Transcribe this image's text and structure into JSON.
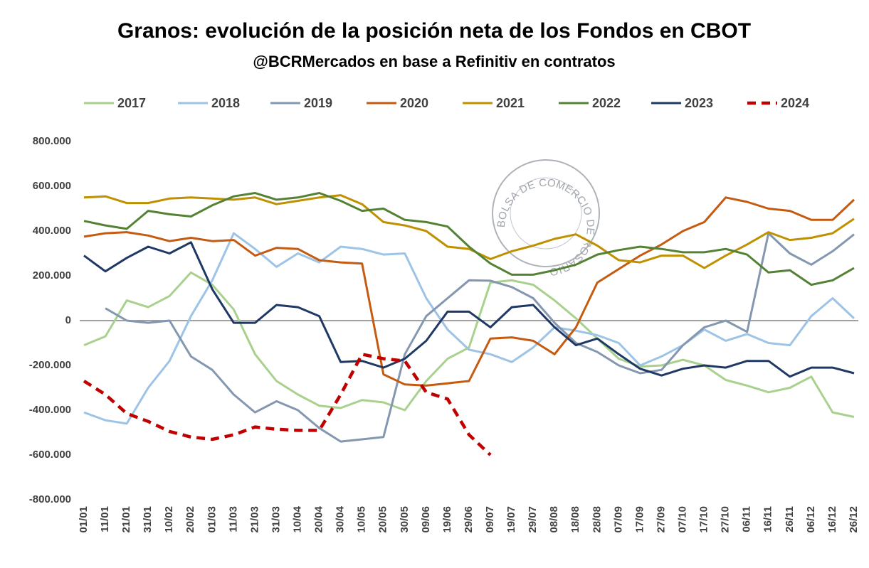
{
  "chart_data": {
    "type": "line",
    "title": "Granos: evolución de la posición neta de los Fondos en CBOT",
    "subtitle": "@BCRMercados en base a Refinitiv en contratos",
    "watermark": "BOLSA DE COMERCIO DE ROSARIO",
    "categories": [
      "01/01",
      "11/01",
      "21/01",
      "31/01",
      "10/02",
      "20/02",
      "01/03",
      "11/03",
      "21/03",
      "31/03",
      "10/04",
      "20/04",
      "30/04",
      "10/05",
      "20/05",
      "30/05",
      "09/06",
      "19/06",
      "29/06",
      "09/07",
      "19/07",
      "29/07",
      "08/08",
      "18/08",
      "28/08",
      "07/09",
      "17/09",
      "27/09",
      "07/10",
      "17/10",
      "27/10",
      "06/11",
      "16/11",
      "26/11",
      "06/12",
      "16/12",
      "26/12"
    ],
    "ylim": [
      -800000,
      800000
    ],
    "yticks": [
      {
        "value": 800000,
        "label": "800.000"
      },
      {
        "value": 600000,
        "label": "600.000"
      },
      {
        "value": 400000,
        "label": "400.000"
      },
      {
        "value": 200000,
        "label": "200.000"
      },
      0,
      {
        "value": -200000,
        "label": "-200.000"
      },
      {
        "value": -400000,
        "label": "-400.000"
      },
      {
        "value": -600000,
        "label": "-600.000"
      },
      {
        "value": -800000,
        "label": "-800.000"
      }
    ],
    "grid": false,
    "legend": "top",
    "series": [
      {
        "name": "2017",
        "color": "#a9d18e",
        "values": [
          -110000,
          -70000,
          90000,
          60000,
          110000,
          215000,
          160000,
          50000,
          -150000,
          -270000,
          -330000,
          -380000,
          -390000,
          -355000,
          -365000,
          -400000,
          -270000,
          -170000,
          -120000,
          170000,
          180000,
          160000,
          90000,
          10000,
          -80000,
          -170000,
          -205000,
          -200000,
          -175000,
          -200000,
          -265000,
          -290000,
          -320000,
          -300000,
          -250000,
          -410000,
          -430000
        ]
      },
      {
        "name": "2018",
        "color": "#9dc3e6",
        "values": [
          -410000,
          -445000,
          -460000,
          -300000,
          -180000,
          20000,
          180000,
          390000,
          320000,
          240000,
          300000,
          260000,
          330000,
          320000,
          295000,
          300000,
          100000,
          -40000,
          -130000,
          -150000,
          -185000,
          -120000,
          -30000,
          -45000,
          -65000,
          -100000,
          -200000,
          -160000,
          -110000,
          -40000,
          -90000,
          -60000,
          -100000,
          -110000,
          20000,
          100000,
          10000
        ]
      },
      {
        "name": "2019",
        "color": "#8497b0",
        "values": [
          null,
          55000,
          0,
          -10000,
          0,
          -160000,
          -220000,
          -330000,
          -410000,
          -360000,
          -400000,
          -480000,
          -540000,
          -530000,
          -520000,
          -150000,
          20000,
          100000,
          180000,
          178000,
          150000,
          100000,
          -10000,
          -100000,
          -140000,
          -200000,
          -235000,
          -220000,
          -110000,
          -30000,
          0,
          -50000,
          390000,
          300000,
          250000,
          310000,
          385000
        ]
      },
      {
        "name": "2020",
        "color": "#c55a11",
        "values": [
          375000,
          390000,
          395000,
          380000,
          355000,
          370000,
          355000,
          360000,
          290000,
          325000,
          320000,
          270000,
          260000,
          255000,
          -240000,
          -285000,
          -290000,
          -280000,
          -270000,
          -80000,
          -75000,
          -90000,
          -150000,
          -30000,
          170000,
          230000,
          290000,
          340000,
          400000,
          440000,
          550000,
          530000,
          500000,
          490000,
          450000,
          450000,
          540000
        ]
      },
      {
        "name": "2021",
        "color": "#bf9000",
        "values": [
          550000,
          555000,
          525000,
          525000,
          545000,
          550000,
          545000,
          540000,
          550000,
          520000,
          535000,
          550000,
          560000,
          520000,
          440000,
          425000,
          400000,
          330000,
          320000,
          275000,
          310000,
          335000,
          365000,
          385000,
          335000,
          270000,
          260000,
          290000,
          290000,
          235000,
          290000,
          340000,
          395000,
          360000,
          370000,
          390000,
          455000
        ]
      },
      {
        "name": "2022",
        "color": "#548235",
        "values": [
          445000,
          425000,
          410000,
          490000,
          475000,
          465000,
          515000,
          555000,
          570000,
          540000,
          550000,
          570000,
          535000,
          490000,
          500000,
          450000,
          440000,
          420000,
          330000,
          255000,
          205000,
          205000,
          225000,
          250000,
          295000,
          315000,
          330000,
          320000,
          305000,
          305000,
          320000,
          295000,
          215000,
          225000,
          160000,
          180000,
          235000
        ]
      },
      {
        "name": "2023",
        "color": "#1f3864",
        "values": [
          290000,
          220000,
          280000,
          330000,
          300000,
          350000,
          140000,
          -10000,
          -10000,
          70000,
          60000,
          20000,
          -185000,
          -180000,
          -210000,
          -170000,
          -90000,
          40000,
          40000,
          -30000,
          60000,
          70000,
          -30000,
          -110000,
          -80000,
          -150000,
          -215000,
          -245000,
          -215000,
          -200000,
          -210000,
          -180000,
          -180000,
          -250000,
          -210000,
          -210000,
          -235000
        ]
      },
      {
        "name": "2024",
        "color": "#c00000",
        "style": "dashed",
        "values": [
          -270000,
          -330000,
          -415000,
          -450000,
          -495000,
          -520000,
          -530000,
          -510000,
          -475000,
          -485000,
          -490000,
          -490000,
          -330000,
          -150000,
          -170000,
          -180000,
          -320000,
          -350000,
          -510000,
          -600000,
          null,
          null,
          null,
          null,
          null,
          null,
          null,
          null,
          null,
          null,
          null,
          null,
          null,
          null,
          null,
          null,
          null
        ]
      }
    ]
  }
}
